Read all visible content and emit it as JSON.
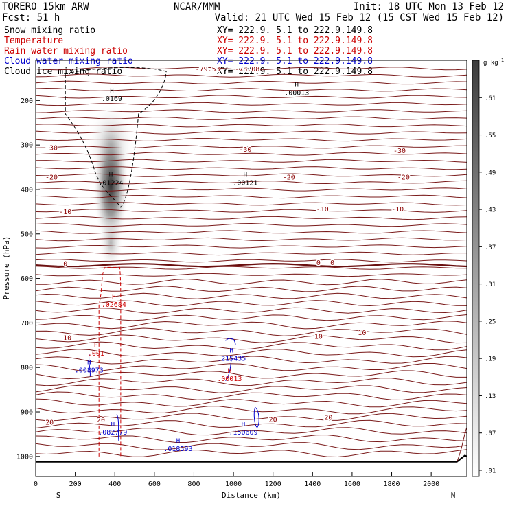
{
  "header": {
    "model": "TORERO   15km ARW",
    "fcst": "Fcst:   51 h",
    "center": "NCAR/MMM",
    "init": "Init: 18 UTC Mon 13 Feb 12",
    "valid": "Valid: 21 UTC Wed 15 Feb 12 (15 CST Wed 15 Feb 12)"
  },
  "fields": [
    {
      "label": "Snow mixing ratio",
      "xy": "XY= 222.9.  5.1 to 222.9.149.8",
      "color": "#000000"
    },
    {
      "label": "Temperature",
      "xy": "XY= 222.9.  5.1 to 222.9.149.8",
      "color": "#cc0000"
    },
    {
      "label": "Rain water mixing ratio",
      "xy": "XY= 222.9.  5.1 to 222.9.149.8",
      "color": "#cc0000"
    },
    {
      "label": "Cloud water mixing ratio",
      "xy": "XY= 222.9.  5.1 to 222.9.149.8",
      "color": "#0000cc"
    },
    {
      "label": "Cloud ice mixing ratio",
      "xy": "XY= 222.9.  5.1 to 222.9.149.8",
      "color": "#000000"
    }
  ],
  "chart_data": {
    "type": "cross-section contour",
    "title": "Vertical cross section",
    "xlabel": "Distance (km)",
    "ylabel": "Pressure (hPa)",
    "xlim": [
      0,
      2180
    ],
    "ylim": [
      1045,
      110
    ],
    "x_ticks": [
      0,
      200,
      400,
      600,
      800,
      1000,
      1200,
      1400,
      1600,
      1800,
      2000
    ],
    "y_ticks": [
      200,
      300,
      400,
      500,
      600,
      700,
      800,
      900,
      1000
    ],
    "x_end_labels": {
      "left": "S",
      "right": "N"
    },
    "colorbar": {
      "unit_label": "g kg",
      "unit_exp": "-1",
      "levels": [
        0.01,
        0.07,
        0.13,
        0.19,
        0.25,
        0.31,
        0.37,
        0.43,
        0.49,
        0.55,
        0.61
      ],
      "tick_labels": [
        ".01",
        ".07",
        ".13",
        ".19",
        ".25",
        ".31",
        ".37",
        ".43",
        ".49",
        ".55",
        ".61"
      ]
    },
    "temperature_isotherms": [
      {
        "label": "-30",
        "p": 326
      },
      {
        "label": "-20",
        "p": 390
      },
      {
        "label": "-10",
        "p": 460
      },
      {
        "label": "0",
        "p": 570
      },
      {
        "label": "10",
        "p": 736
      },
      {
        "label": "20",
        "p": 925
      }
    ],
    "temperature_labels": [
      {
        "text": "-30",
        "x": 80,
        "p": 306
      },
      {
        "text": "-30",
        "x": 1060,
        "p": 310
      },
      {
        "text": "-30",
        "x": 1840,
        "p": 313
      },
      {
        "text": "-20",
        "x": 80,
        "p": 372
      },
      {
        "text": "-20",
        "x": 1280,
        "p": 372
      },
      {
        "text": "-20",
        "x": 1860,
        "p": 372
      },
      {
        "text": "-10",
        "x": 150,
        "p": 450
      },
      {
        "text": "-10",
        "x": 1450,
        "p": 444
      },
      {
        "text": "-10",
        "x": 1830,
        "p": 444
      },
      {
        "text": "0",
        "x": 150,
        "p": 567
      },
      {
        "text": "0",
        "x": 1430,
        "p": 564
      },
      {
        "text": "0",
        "x": 1500,
        "p": 564
      },
      {
        "text": "10",
        "x": 160,
        "p": 733
      },
      {
        "text": "10",
        "x": 1430,
        "p": 730
      },
      {
        "text": "10",
        "x": 1650,
        "p": 722
      },
      {
        "text": "20",
        "x": 70,
        "p": 923
      },
      {
        "text": "20",
        "x": 330,
        "p": 918
      },
      {
        "text": "20",
        "x": 1200,
        "p": 917
      },
      {
        "text": "20",
        "x": 1480,
        "p": 912
      },
      {
        "text": "-79.53",
        "x": 870,
        "p": 129
      },
      {
        "text": "-78.08",
        "x": 1070,
        "p": 129
      }
    ],
    "maxima": [
      {
        "field": "snow",
        "value": ".0169",
        "x": 385,
        "p": 195
      },
      {
        "field": "snow",
        "value": ".00013",
        "x": 1320,
        "p": 182
      },
      {
        "field": "snow",
        "value": ".01224",
        "x": 380,
        "p": 384
      },
      {
        "field": "snow",
        "value": ".00121",
        "x": 1060,
        "p": 384
      },
      {
        "field": "rain",
        "value": ".02684",
        "x": 395,
        "p": 658
      },
      {
        "field": "rain",
        "value": ".001",
        "x": 305,
        "p": 767
      },
      {
        "field": "rain",
        "value": ".00013",
        "x": 980,
        "p": 824
      },
      {
        "field": "cloudwater",
        "value": ".008973",
        "x": 270,
        "p": 805
      },
      {
        "field": "cloudwater",
        "value": ".215435",
        "x": 990,
        "p": 779
      },
      {
        "field": "cloudwater",
        "value": ".082779",
        "x": 390,
        "p": 945
      },
      {
        "field": "cloudwater",
        "value": ".150609",
        "x": 1050,
        "p": 945
      },
      {
        "field": "cloudwater",
        "value": ".018593",
        "x": 720,
        "p": 982
      }
    ],
    "series": [
      {
        "name": "Snow mixing ratio",
        "style": "grayscale shading",
        "peak": 0.6,
        "peak_x": 380,
        "peak_p": 390
      },
      {
        "name": "Temperature",
        "style": "solid contours, 5 C interval"
      },
      {
        "name": "Rain water mixing ratio",
        "style": "dashed contour"
      },
      {
        "name": "Cloud water mixing ratio",
        "style": "solid contour"
      },
      {
        "name": "Cloud ice mixing ratio",
        "style": "dashed contour"
      }
    ]
  }
}
